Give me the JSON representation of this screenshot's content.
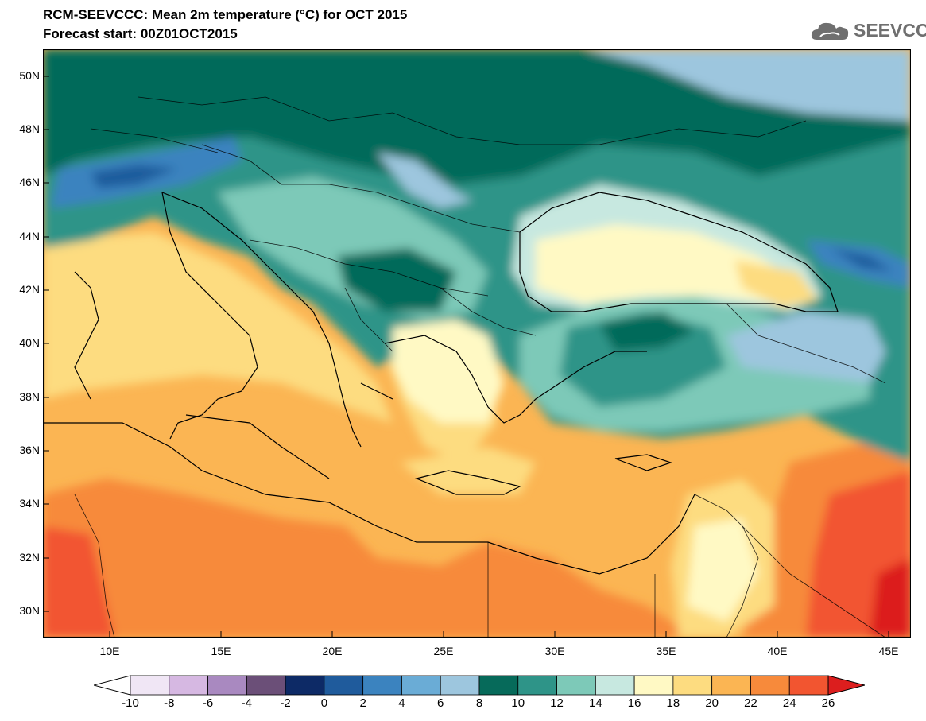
{
  "header": {
    "title": "RCM-SEEVCCC: Mean 2m temperature (°C) for OCT 2015",
    "subtitle": "Forecast start: 00Z01OCT2015",
    "logo_text": "SEEVCCC"
  },
  "map": {
    "variable": "Mean 2m temperature",
    "units": "°C",
    "lat_range": [
      29,
      51
    ],
    "lon_range": [
      7,
      46
    ],
    "lat_labels": [
      "50N",
      "48N",
      "46N",
      "44N",
      "42N",
      "40N",
      "38N",
      "36N",
      "34N",
      "32N",
      "30N"
    ],
    "lon_labels": [
      "10E",
      "15E",
      "20E",
      "25E",
      "30E",
      "35E",
      "40E",
      "45E"
    ]
  },
  "colorbar": {
    "labels": [
      "-10",
      "-8",
      "-6",
      "-4",
      "-2",
      "0",
      "2",
      "4",
      "6",
      "8",
      "10",
      "12",
      "14",
      "16",
      "18",
      "20",
      "22",
      "24",
      "26"
    ],
    "colors": [
      "#ffffff",
      "#f0e6f5",
      "#d6b8e2",
      "#a989c0",
      "#6b4f78",
      "#0d2a66",
      "#1f5b9c",
      "#3b83bf",
      "#6aacd6",
      "#9dc6de",
      "#066a5a",
      "#2e9488",
      "#7dc9b8",
      "#c7e8e0",
      "#fff9c4",
      "#fddc80",
      "#fbb553",
      "#f78a3b",
      "#f25530",
      "#dc1e1e"
    ]
  },
  "colors": {
    "sea_warm": "#fbb553",
    "cool": "#066a5a",
    "hot": "#f25530"
  }
}
